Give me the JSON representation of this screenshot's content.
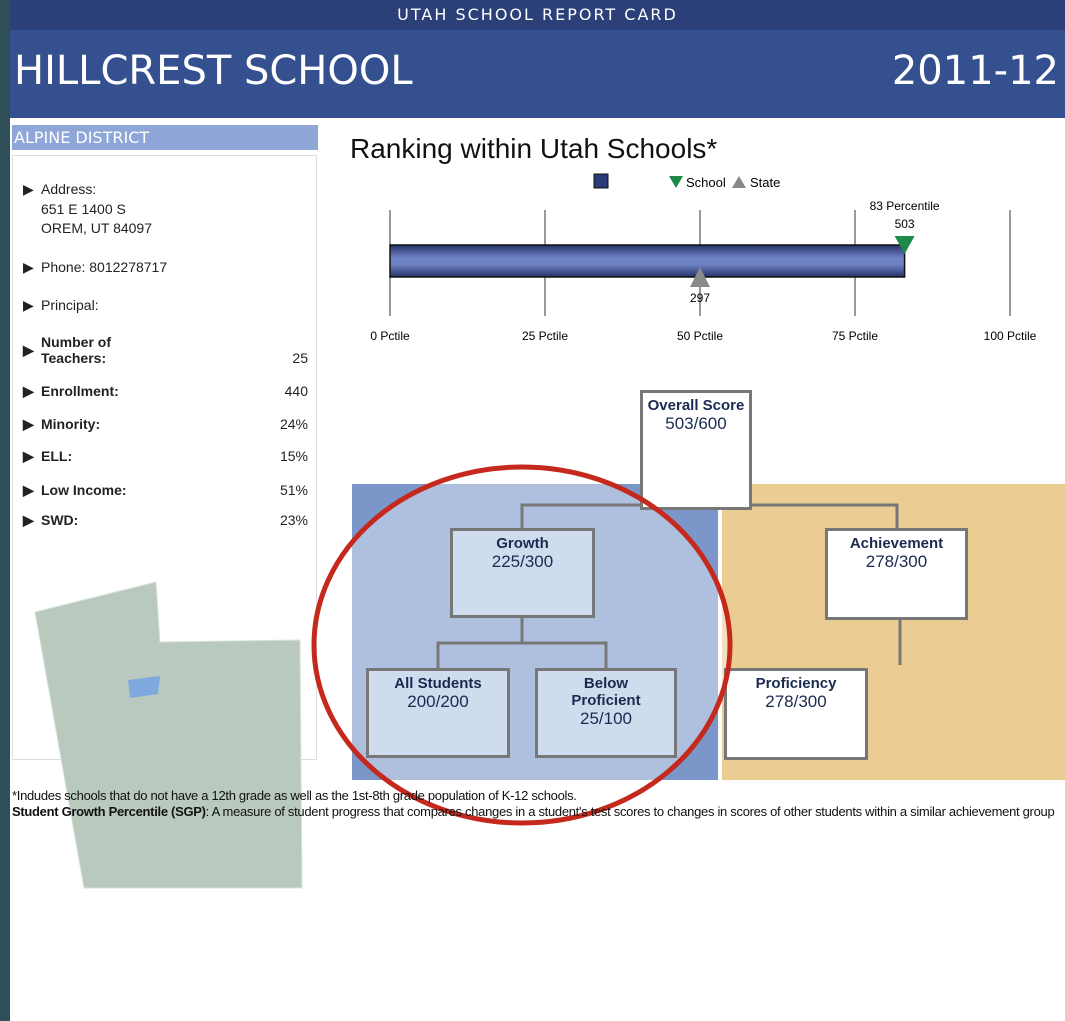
{
  "header": {
    "top": "UTAH SCHOOL REPORT CARD",
    "school": "HILLCREST SCHOOL",
    "year": "2011-12"
  },
  "sidebar": {
    "district": "ALPINE DISTRICT",
    "address_label": "Address:",
    "address_lines": [
      "651 E 1400 S",
      "OREM, UT 84097"
    ],
    "phone_label": "Phone:",
    "phone": "8012278717",
    "principal_label": "Principal:",
    "stats": [
      {
        "label": "Number of Teachers:",
        "value": "25"
      },
      {
        "label": "Enrollment:",
        "value": "440"
      },
      {
        "label": "Minority:",
        "value": "24%"
      },
      {
        "label": "ELL:",
        "value": "15%"
      },
      {
        "label": "Low Income:",
        "value": "51%"
      },
      {
        "label": "SWD:",
        "value": "23%"
      }
    ]
  },
  "ranking": {
    "title": "Ranking within Utah Schools*",
    "legend": {
      "school": "School",
      "state": "State"
    },
    "xlim": [
      0,
      100
    ],
    "xticks": [
      {
        "value": 0,
        "label": "0 Pctile"
      },
      {
        "value": 25,
        "label": "25 Pctile"
      },
      {
        "value": 50,
        "label": "50 Pctile"
      },
      {
        "value": 75,
        "label": "75 Pctile"
      },
      {
        "value": 100,
        "label": "100 Pctile"
      }
    ],
    "school": {
      "percentile": 83,
      "percentile_label": "83 Percentile",
      "score": 503
    },
    "state": {
      "percentile": 50,
      "score": 297
    }
  },
  "tree": {
    "overall": {
      "label": "Overall Score",
      "score": "503/600"
    },
    "growth": {
      "label": "Growth",
      "score": "225/300"
    },
    "achievement": {
      "label": "Achievement",
      "score": "278/300"
    },
    "all_students": {
      "label": "All Students",
      "score": "200/200"
    },
    "below_proficient": {
      "label": "Below Proficient",
      "score": "25/100"
    },
    "proficiency": {
      "label": "Proficiency",
      "score": "278/300"
    }
  },
  "footnotes": {
    "note": "*Indudes schools that do not have a 12th grade as well as the 1st-8th grade population of K-12 schools.",
    "sgp_term": "Student Growth Percentile (SGP)",
    "sgp_text": ": A measure of student progress that compares changes in a student's test scores to changes in scores of other students within a similar achievement group"
  }
}
